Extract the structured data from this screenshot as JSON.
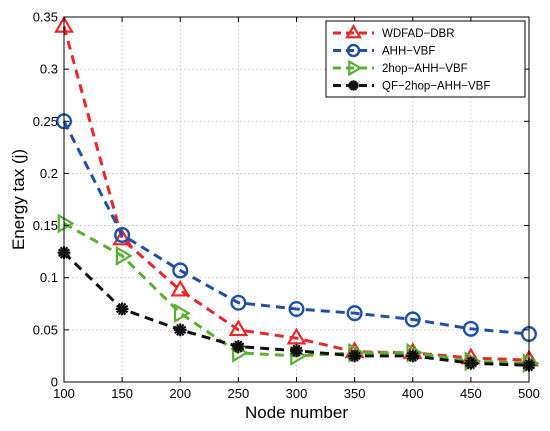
{
  "chart_data": {
    "type": "line",
    "title": "",
    "xlabel": "Node number",
    "ylabel": "Energy tax (j)",
    "x": [
      100,
      150,
      200,
      250,
      300,
      350,
      400,
      450,
      500
    ],
    "xlim": [
      100,
      500
    ],
    "ylim": [
      0,
      0.35
    ],
    "xticks": [
      "100",
      "150",
      "200",
      "250",
      "300",
      "350",
      "400",
      "450",
      "500"
    ],
    "yticks": [
      "0",
      "0.05",
      "0.1",
      "0.15",
      "0.2",
      "0.25",
      "0.3",
      "0.35"
    ],
    "grid": true,
    "legend_position": "top-right",
    "series": [
      {
        "name": "WDFAD−DBR",
        "color": "#e8282b",
        "marker": "triangle-up",
        "values": [
          0.341,
          0.137,
          0.088,
          0.05,
          0.042,
          0.029,
          0.028,
          0.023,
          0.021
        ]
      },
      {
        "name": "AHH−VBF",
        "color": "#1f4fa6",
        "marker": "circle",
        "values": [
          0.25,
          0.141,
          0.107,
          0.076,
          0.07,
          0.066,
          0.06,
          0.051,
          0.046
        ]
      },
      {
        "name": "2hop−AHH−VBF",
        "color": "#5ab032",
        "marker": "triangle-right",
        "values": [
          0.152,
          0.121,
          0.066,
          0.028,
          0.025,
          0.028,
          0.028,
          0.02,
          0.018
        ]
      },
      {
        "name": "QF−2hop−AHH−VBF",
        "color": "#111111",
        "marker": "asterisk",
        "values": [
          0.124,
          0.07,
          0.05,
          0.034,
          0.03,
          0.025,
          0.025,
          0.018,
          0.016
        ]
      }
    ]
  }
}
